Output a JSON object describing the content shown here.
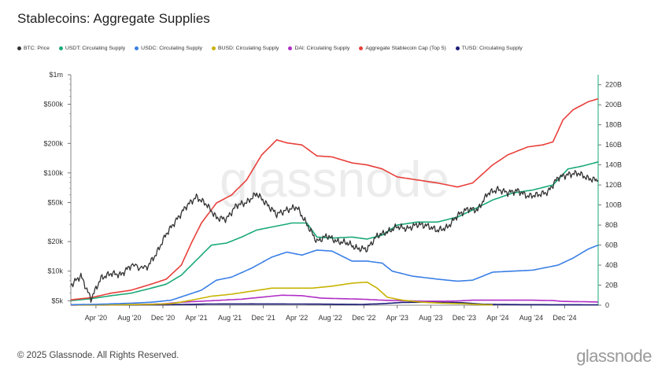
{
  "title": "Stablecoins: Aggregate Supplies",
  "footer": "© 2025 Glassnode. All Rights Reserved.",
  "brand": "glassnode",
  "watermark": "glassnode",
  "chart_data": {
    "type": "line",
    "title": "Stablecoins: Aggregate Supplies",
    "x_tick_labels": [
      "Apr '20",
      "Aug '20",
      "Dec '20",
      "Apr '21",
      "Aug '21",
      "Dec '21",
      "Apr '22",
      "Aug '22",
      "Dec '22",
      "Apr '23",
      "Aug '23",
      "Dec '23",
      "Apr '24",
      "Aug '24",
      "Dec '24"
    ],
    "left_axis": {
      "scale": "log",
      "range": [
        4500,
        1000000
      ],
      "tick_values": [
        5000,
        10000,
        20000,
        50000,
        100000,
        200000,
        500000,
        1000000
      ],
      "tick_labels": [
        "$5k",
        "$10k",
        "$20k",
        "$50k",
        "$100k",
        "$200k",
        "$500k",
        "$1m"
      ]
    },
    "right_axis": {
      "scale": "linear",
      "range": [
        0,
        230
      ],
      "unit": "B",
      "tick_values": [
        0,
        20,
        40,
        60,
        80,
        100,
        120,
        140,
        160,
        180,
        200,
        220
      ],
      "tick_labels": [
        "0",
        "20B",
        "40B",
        "60B",
        "80B",
        "100B",
        "120B",
        "140B",
        "160B",
        "180B",
        "200B",
        "220B"
      ]
    },
    "x_range": [
      2020.0,
      2025.25
    ],
    "series": [
      {
        "name": "BTC: Price",
        "color": "#333333",
        "axis": "left",
        "points": [
          [
            2020.0,
            7200
          ],
          [
            2020.1,
            9000
          ],
          [
            2020.2,
            5200
          ],
          [
            2020.3,
            8500
          ],
          [
            2020.4,
            9500
          ],
          [
            2020.5,
            9200
          ],
          [
            2020.6,
            11500
          ],
          [
            2020.75,
            10700
          ],
          [
            2020.85,
            15000
          ],
          [
            2020.95,
            24000
          ],
          [
            2021.05,
            33000
          ],
          [
            2021.15,
            46000
          ],
          [
            2021.25,
            57000
          ],
          [
            2021.35,
            48000
          ],
          [
            2021.45,
            35000
          ],
          [
            2021.55,
            34000
          ],
          [
            2021.65,
            47000
          ],
          [
            2021.75,
            50000
          ],
          [
            2021.85,
            62000
          ],
          [
            2021.95,
            48000
          ],
          [
            2022.05,
            38000
          ],
          [
            2022.15,
            42000
          ],
          [
            2022.25,
            45000
          ],
          [
            2022.35,
            30000
          ],
          [
            2022.45,
            20000
          ],
          [
            2022.55,
            23000
          ],
          [
            2022.65,
            20000
          ],
          [
            2022.75,
            19500
          ],
          [
            2022.85,
            17000
          ],
          [
            2022.95,
            16800
          ],
          [
            2023.05,
            23000
          ],
          [
            2023.15,
            25000
          ],
          [
            2023.25,
            28500
          ],
          [
            2023.35,
            27000
          ],
          [
            2023.45,
            30000
          ],
          [
            2023.55,
            29000
          ],
          [
            2023.65,
            26000
          ],
          [
            2023.75,
            28000
          ],
          [
            2023.85,
            37000
          ],
          [
            2023.95,
            43000
          ],
          [
            2024.05,
            42000
          ],
          [
            2024.15,
            62000
          ],
          [
            2024.25,
            68000
          ],
          [
            2024.35,
            63000
          ],
          [
            2024.45,
            66000
          ],
          [
            2024.55,
            58000
          ],
          [
            2024.65,
            60000
          ],
          [
            2024.75,
            64000
          ],
          [
            2024.85,
            90000
          ],
          [
            2024.95,
            96000
          ],
          [
            2025.05,
            100000
          ],
          [
            2025.15,
            88000
          ],
          [
            2025.25,
            84000
          ]
        ]
      },
      {
        "name": "USDT: Circulating Supply",
        "color": "#1aaa77",
        "axis": "right",
        "points": [
          [
            2020.0,
            4.6
          ],
          [
            2020.2,
            6.5
          ],
          [
            2020.4,
            9.5
          ],
          [
            2020.6,
            12
          ],
          [
            2020.8,
            17
          ],
          [
            2020.95,
            21
          ],
          [
            2021.1,
            30
          ],
          [
            2021.25,
            45
          ],
          [
            2021.4,
            60
          ],
          [
            2021.55,
            62
          ],
          [
            2021.7,
            68
          ],
          [
            2021.85,
            75
          ],
          [
            2022.0,
            78
          ],
          [
            2022.2,
            82
          ],
          [
            2022.35,
            82
          ],
          [
            2022.45,
            68
          ],
          [
            2022.6,
            67
          ],
          [
            2022.8,
            68
          ],
          [
            2022.95,
            66
          ],
          [
            2023.1,
            70
          ],
          [
            2023.25,
            80
          ],
          [
            2023.45,
            83
          ],
          [
            2023.65,
            83
          ],
          [
            2023.85,
            88
          ],
          [
            2024.0,
            95
          ],
          [
            2024.2,
            105
          ],
          [
            2024.4,
            112
          ],
          [
            2024.6,
            115
          ],
          [
            2024.8,
            120
          ],
          [
            2024.95,
            136
          ],
          [
            2025.1,
            139
          ],
          [
            2025.25,
            143
          ]
        ]
      },
      {
        "name": "USDC: Circulating Supply",
        "color": "#3a7fe6",
        "axis": "right",
        "points": [
          [
            2020.0,
            0.5
          ],
          [
            2020.3,
            1
          ],
          [
            2020.6,
            2
          ],
          [
            2020.8,
            3
          ],
          [
            2021.0,
            5
          ],
          [
            2021.15,
            10
          ],
          [
            2021.3,
            15
          ],
          [
            2021.45,
            25
          ],
          [
            2021.6,
            28
          ],
          [
            2021.8,
            37
          ],
          [
            2022.0,
            48
          ],
          [
            2022.15,
            53
          ],
          [
            2022.3,
            50
          ],
          [
            2022.45,
            55
          ],
          [
            2022.6,
            54
          ],
          [
            2022.8,
            44
          ],
          [
            2022.95,
            44
          ],
          [
            2023.1,
            42
          ],
          [
            2023.2,
            34
          ],
          [
            2023.4,
            29
          ],
          [
            2023.65,
            26
          ],
          [
            2023.85,
            24
          ],
          [
            2024.0,
            25
          ],
          [
            2024.2,
            33
          ],
          [
            2024.4,
            34
          ],
          [
            2024.6,
            35
          ],
          [
            2024.85,
            40
          ],
          [
            2025.0,
            47
          ],
          [
            2025.15,
            56
          ],
          [
            2025.25,
            60
          ]
        ]
      },
      {
        "name": "BUSD: Circulating Supply",
        "color": "#c7b300",
        "axis": "right",
        "points": [
          [
            2020.0,
            0.2
          ],
          [
            2020.4,
            0.3
          ],
          [
            2020.8,
            0.9
          ],
          [
            2021.0,
            1.5
          ],
          [
            2021.2,
            5
          ],
          [
            2021.4,
            9
          ],
          [
            2021.6,
            11
          ],
          [
            2021.8,
            14
          ],
          [
            2022.0,
            17
          ],
          [
            2022.2,
            17
          ],
          [
            2022.4,
            17
          ],
          [
            2022.6,
            19
          ],
          [
            2022.8,
            22
          ],
          [
            2022.95,
            23
          ],
          [
            2023.05,
            17
          ],
          [
            2023.15,
            8
          ],
          [
            2023.3,
            5
          ],
          [
            2023.5,
            3
          ],
          [
            2023.7,
            2
          ],
          [
            2023.9,
            1.5
          ],
          [
            2024.1,
            0.5
          ],
          [
            2024.2,
            0.3
          ]
        ]
      },
      {
        "name": "DAI: Circulating Supply",
        "color": "#b02ec6",
        "axis": "right",
        "points": [
          [
            2020.0,
            0.1
          ],
          [
            2020.4,
            0.2
          ],
          [
            2020.7,
            0.8
          ],
          [
            2020.9,
            1.2
          ],
          [
            2021.1,
            3
          ],
          [
            2021.3,
            4
          ],
          [
            2021.5,
            5
          ],
          [
            2021.7,
            6
          ],
          [
            2021.9,
            8
          ],
          [
            2022.1,
            10
          ],
          [
            2022.3,
            9.5
          ],
          [
            2022.5,
            7
          ],
          [
            2022.7,
            6.5
          ],
          [
            2022.9,
            6
          ],
          [
            2023.1,
            5
          ],
          [
            2023.3,
            4.5
          ],
          [
            2023.5,
            4
          ],
          [
            2023.7,
            4
          ],
          [
            2023.85,
            4.2
          ],
          [
            2024.0,
            5
          ],
          [
            2024.3,
            5
          ],
          [
            2024.6,
            5
          ],
          [
            2024.8,
            4.6
          ],
          [
            2024.9,
            3.8
          ],
          [
            2025.1,
            3.5
          ],
          [
            2025.25,
            3.2
          ]
        ]
      },
      {
        "name": "Aggregate Stablecoin Cap (Top 5)",
        "color": "#e8403b",
        "axis": "right",
        "points": [
          [
            2020.0,
            5.4
          ],
          [
            2020.2,
            7.5
          ],
          [
            2020.4,
            12
          ],
          [
            2020.6,
            15
          ],
          [
            2020.8,
            21
          ],
          [
            2020.95,
            26
          ],
          [
            2021.1,
            40
          ],
          [
            2021.2,
            62
          ],
          [
            2021.3,
            82
          ],
          [
            2021.45,
            102
          ],
          [
            2021.6,
            110
          ],
          [
            2021.75,
            125
          ],
          [
            2021.9,
            150
          ],
          [
            2022.05,
            165
          ],
          [
            2022.15,
            162
          ],
          [
            2022.3,
            160
          ],
          [
            2022.45,
            149
          ],
          [
            2022.6,
            148
          ],
          [
            2022.8,
            142
          ],
          [
            2022.95,
            140
          ],
          [
            2023.1,
            136
          ],
          [
            2023.25,
            128
          ],
          [
            2023.45,
            125
          ],
          [
            2023.65,
            122
          ],
          [
            2023.85,
            118
          ],
          [
            2024.0,
            122
          ],
          [
            2024.2,
            140
          ],
          [
            2024.35,
            150
          ],
          [
            2024.55,
            158
          ],
          [
            2024.7,
            160
          ],
          [
            2024.8,
            163
          ],
          [
            2024.9,
            185
          ],
          [
            2025.0,
            195
          ],
          [
            2025.15,
            203
          ],
          [
            2025.25,
            206
          ]
        ]
      },
      {
        "name": "TUSD: Circulating Supply",
        "color": "#1c1c7a",
        "axis": "right",
        "points": [
          [
            2020.0,
            0.2
          ],
          [
            2020.6,
            0.3
          ],
          [
            2021.0,
            0.6
          ],
          [
            2021.4,
            1.2
          ],
          [
            2021.8,
            1.3
          ],
          [
            2022.2,
            1.2
          ],
          [
            2022.6,
            1.0
          ],
          [
            2022.9,
            0.8
          ],
          [
            2023.1,
            1.5
          ],
          [
            2023.3,
            2.8
          ],
          [
            2023.5,
            3
          ],
          [
            2023.7,
            2.8
          ],
          [
            2023.9,
            2.5
          ],
          [
            2024.1,
            1
          ],
          [
            2024.4,
            0.6
          ],
          [
            2024.8,
            0.5
          ],
          [
            2025.25,
            0.4
          ]
        ]
      }
    ]
  }
}
